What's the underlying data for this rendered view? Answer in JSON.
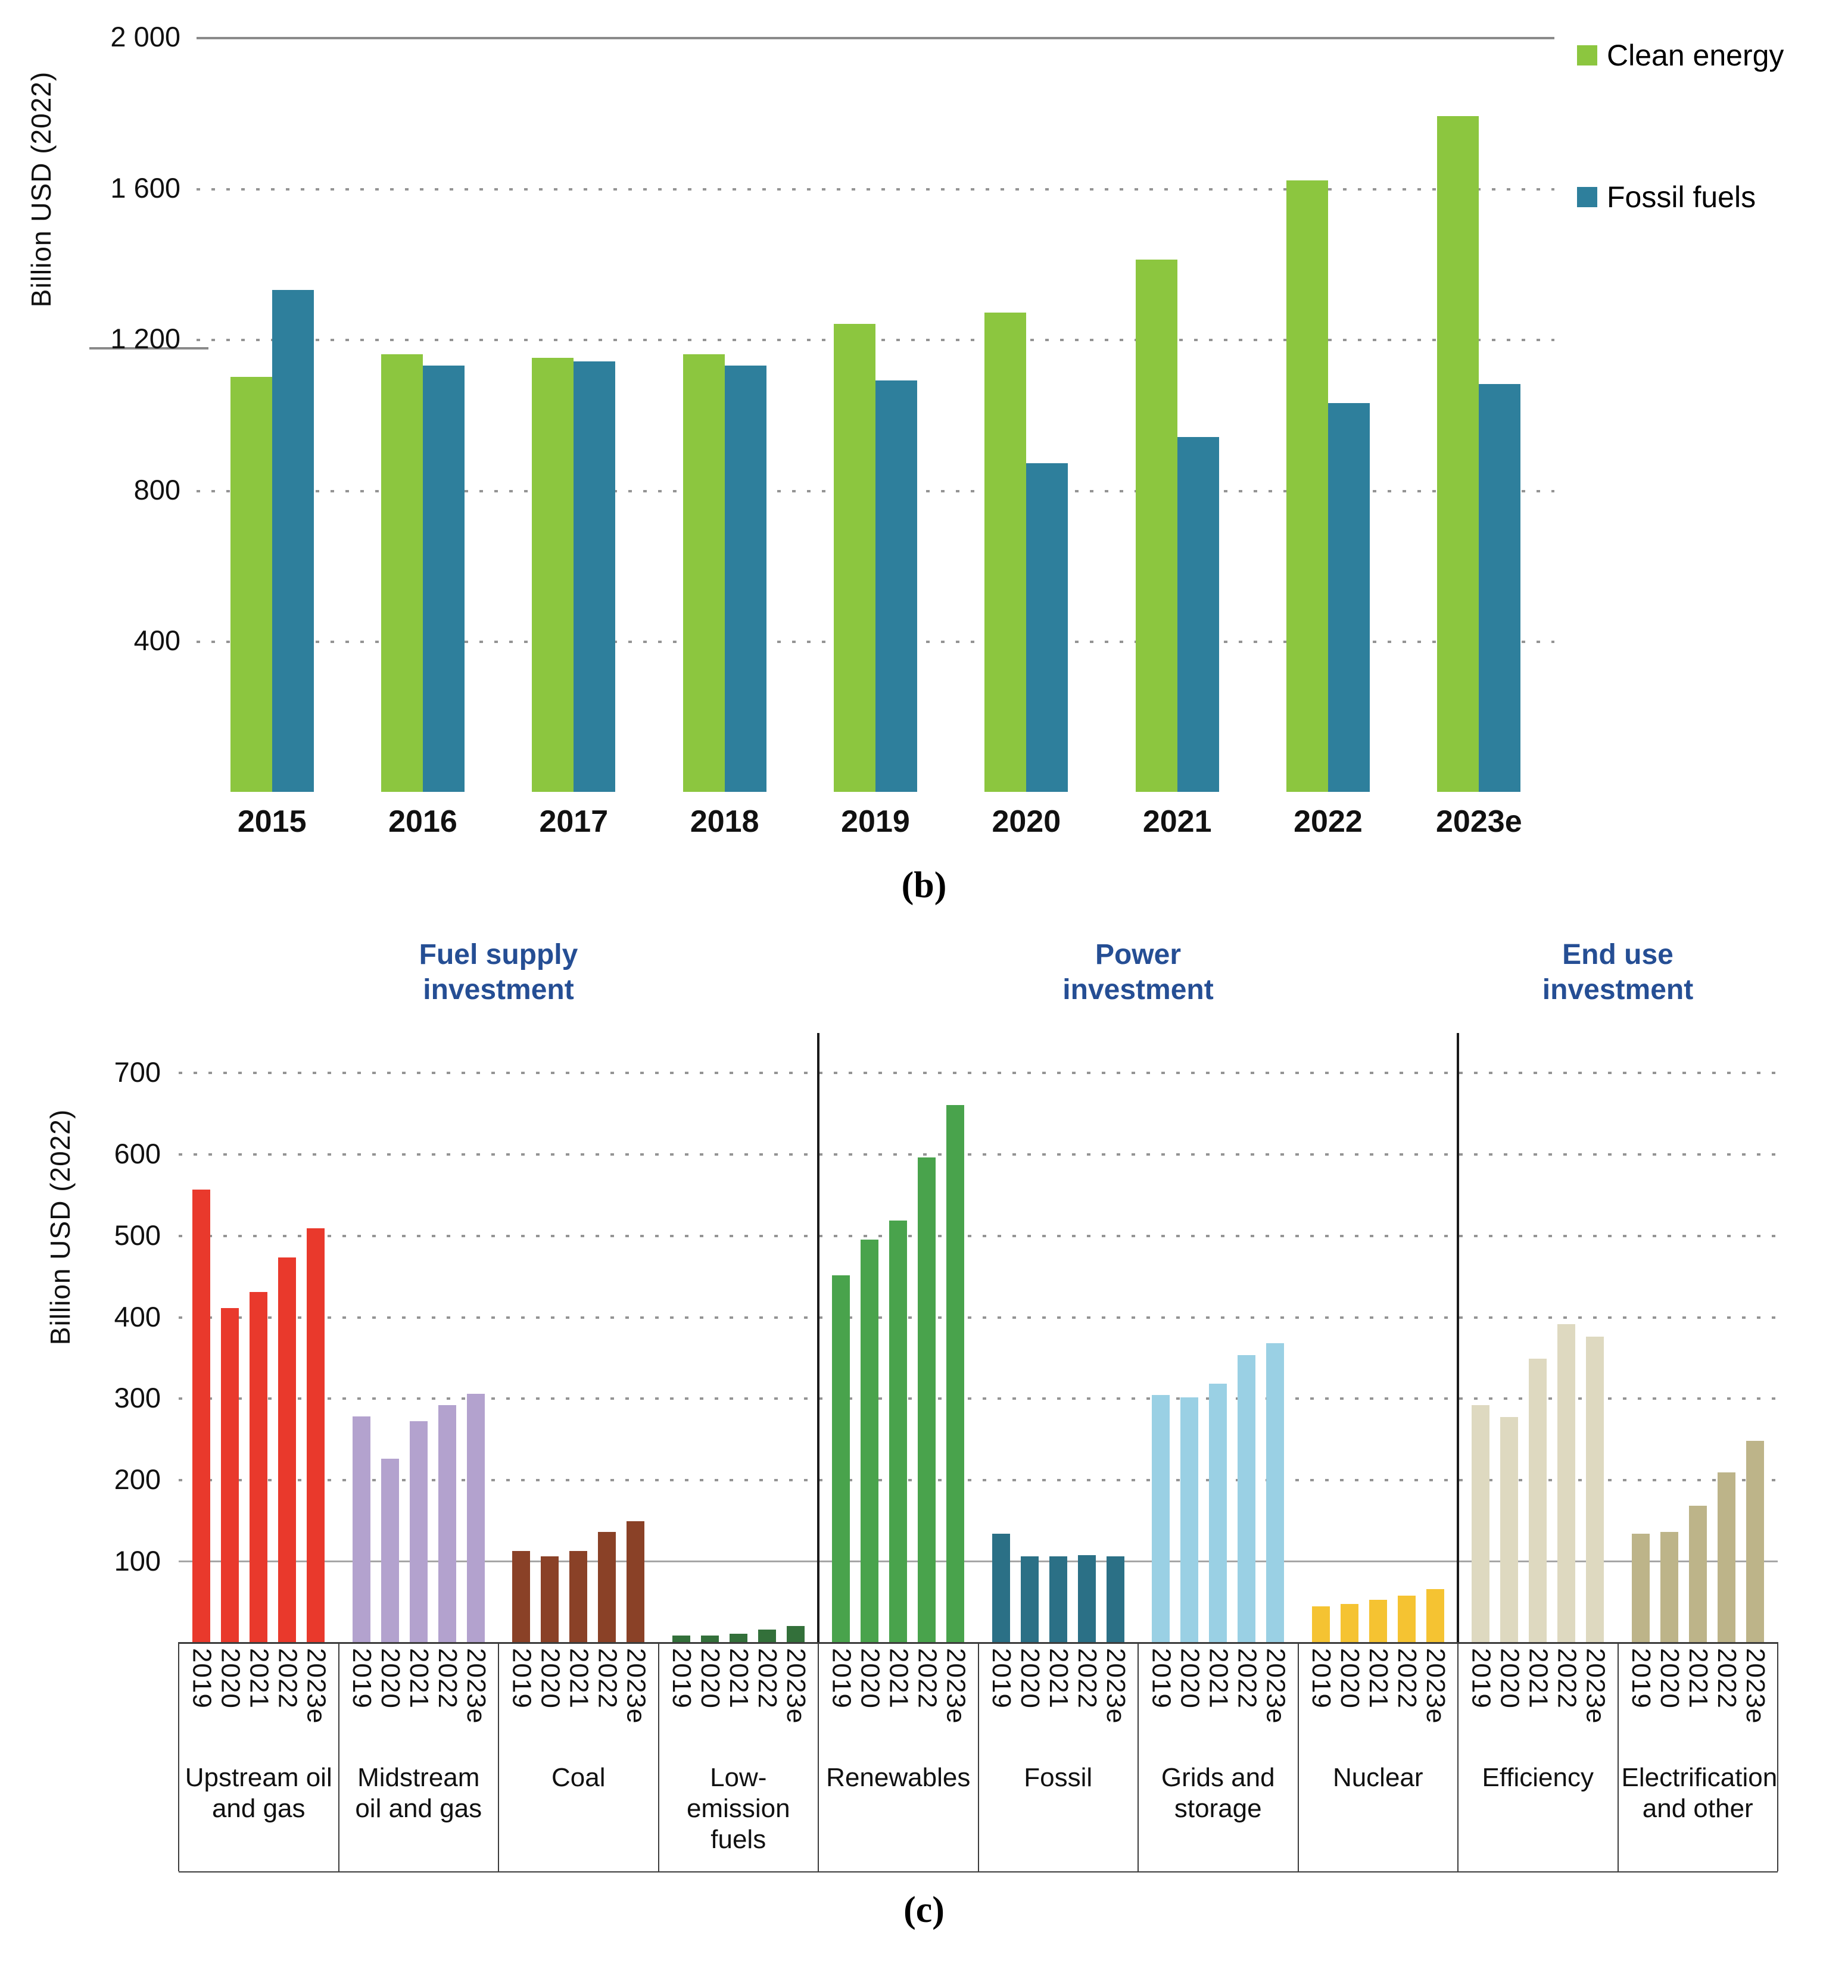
{
  "chart_data": [
    {
      "id": "b",
      "type": "bar",
      "caption": "(b)",
      "ylabel": "Billion USD (2022)",
      "ylim": [
        0,
        2000
      ],
      "grid": "dotted",
      "legend_position": "top-right",
      "yticks": [
        {
          "value": 2000,
          "label": "2 000",
          "style": "solid"
        },
        {
          "value": 1600,
          "label": "1 600",
          "style": "dotted"
        },
        {
          "value": 1200,
          "label": "1 200",
          "style": "dotted"
        },
        {
          "value": 800,
          "label": "800",
          "style": "dotted"
        },
        {
          "value": 400,
          "label": "400",
          "style": "dotted"
        }
      ],
      "categories": [
        "2015",
        "2016",
        "2017",
        "2018",
        "2019",
        "2020",
        "2021",
        "2022",
        "2023e"
      ],
      "series": [
        {
          "name": "Clean energy",
          "color": "#8cc63f",
          "values": [
            1100,
            1160,
            1150,
            1160,
            1240,
            1270,
            1410,
            1620,
            1790
          ]
        },
        {
          "name": "Fossil fuels",
          "color": "#2e7f9c",
          "values": [
            1330,
            1130,
            1140,
            1130,
            1090,
            870,
            940,
            1030,
            1080
          ]
        }
      ]
    },
    {
      "id": "c",
      "type": "bar",
      "caption": "(c)",
      "ylabel": "Billion USD (2022)",
      "ylim": [
        0,
        700
      ],
      "grid": "dotted",
      "yticks": [
        {
          "value": 700,
          "label": "700",
          "style": "dotted"
        },
        {
          "value": 600,
          "label": "600",
          "style": "dotted"
        },
        {
          "value": 500,
          "label": "500",
          "style": "dotted"
        },
        {
          "value": 400,
          "label": "400",
          "style": "dotted"
        },
        {
          "value": 300,
          "label": "300",
          "style": "dotted"
        },
        {
          "value": 200,
          "label": "200",
          "style": "dotted"
        },
        {
          "value": 100,
          "label": "100",
          "style": "solid"
        }
      ],
      "years": [
        "2019",
        "2020",
        "2021",
        "2022",
        "2023e"
      ],
      "sections": [
        {
          "title_line1": "Fuel supply",
          "title_line2": "investment",
          "first_group": 0,
          "last_group": 3
        },
        {
          "title_line1": "Power",
          "title_line2": "investment",
          "first_group": 4,
          "last_group": 7
        },
        {
          "title_line1": "End use",
          "title_line2": "investment",
          "first_group": 8,
          "last_group": 9
        }
      ],
      "groups": [
        {
          "label": "Upstream oil and gas",
          "color": "#e9392c",
          "values": [
            555,
            410,
            430,
            472,
            508
          ]
        },
        {
          "label": "Midstream oil and gas",
          "color": "#b3a2ce",
          "values": [
            277,
            225,
            271,
            291,
            305
          ]
        },
        {
          "label": "Coal",
          "color": "#8a4127",
          "values": [
            112,
            105,
            112,
            135,
            148
          ]
        },
        {
          "label": "Low- emission fuels",
          "color": "#33703a",
          "values": [
            8,
            8,
            10,
            15,
            20
          ]
        },
        {
          "label": "Renewables",
          "color": "#49a34c",
          "values": [
            450,
            494,
            517,
            595,
            659
          ]
        },
        {
          "label": "Fossil",
          "color": "#2b7086",
          "values": [
            133,
            105,
            105,
            107,
            105
          ]
        },
        {
          "label": "Grids and storage",
          "color": "#9ad0e4",
          "values": [
            303,
            300,
            317,
            352,
            367
          ]
        },
        {
          "label": "Nuclear",
          "color": "#f5c332",
          "values": [
            44,
            47,
            52,
            57,
            65
          ]
        },
        {
          "label": "Efficiency",
          "color": "#ded9c0",
          "values": [
            291,
            276,
            348,
            390,
            375
          ]
        },
        {
          "label": "Electrification and other",
          "color": "#bdb489",
          "values": [
            133,
            135,
            167,
            208,
            247
          ]
        }
      ]
    }
  ]
}
